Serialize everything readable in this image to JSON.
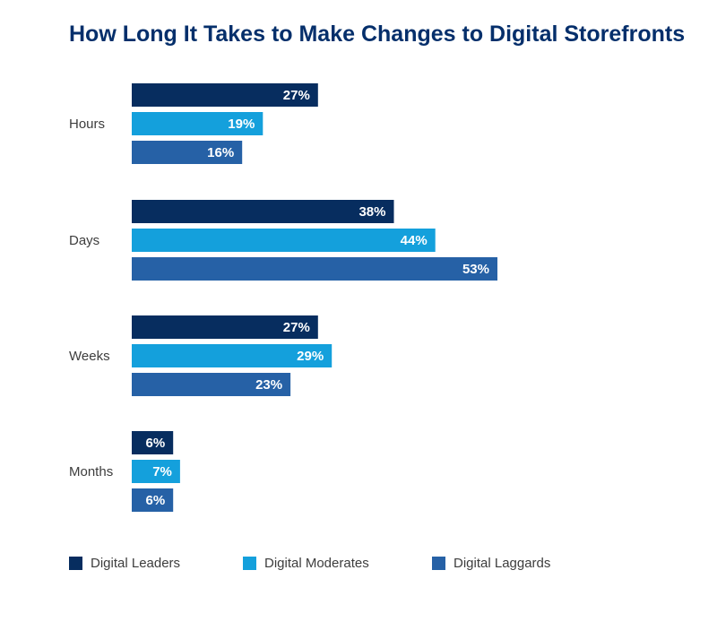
{
  "chart_data": {
    "type": "bar",
    "orientation": "horizontal",
    "title": "How Long It Takes to Make Changes to Digital Storefronts",
    "categories": [
      "Hours",
      "Days",
      "Weeks",
      "Months"
    ],
    "series": [
      {
        "name": "Digital Leaders",
        "color": "#072d5f",
        "values": [
          27,
          38,
          27,
          6
        ]
      },
      {
        "name": "Digital Moderates",
        "color": "#14a0dc",
        "values": [
          19,
          44,
          29,
          7
        ]
      },
      {
        "name": "Digital Laggards",
        "color": "#2661a6",
        "values": [
          16,
          53,
          23,
          6
        ]
      }
    ],
    "value_suffix": "%",
    "xlabel": "",
    "ylabel": "",
    "xlim": [
      0,
      53
    ],
    "grid": false,
    "legend_position": "bottom"
  }
}
